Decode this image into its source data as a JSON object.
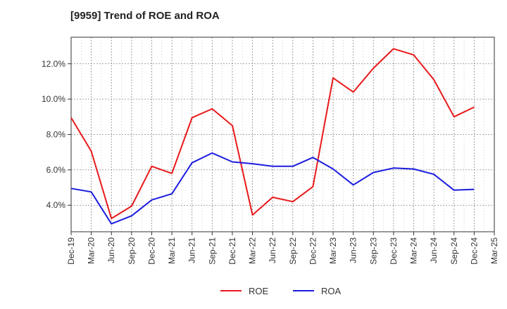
{
  "chart_data": {
    "type": "line",
    "title": "[9959]  Trend of ROE and ROA",
    "x": [
      "Dec-19",
      "Mar-20",
      "Jun-20",
      "Sep-20",
      "Dec-20",
      "Mar-21",
      "Jun-21",
      "Sep-21",
      "Dec-21",
      "Mar-22",
      "Jun-22",
      "Sep-22",
      "Dec-22",
      "Mar-23",
      "Jun-23",
      "Sep-23",
      "Dec-23",
      "Mar-24",
      "Jun-24",
      "Sep-24",
      "Dec-24",
      "Mar-25"
    ],
    "y_ticks": [
      "4.0%",
      "6.0%",
      "8.0%",
      "10.0%",
      "12.0%"
    ],
    "y_tick_values": [
      4,
      6,
      8,
      10,
      12
    ],
    "ylim": [
      2.5,
      13.5
    ],
    "grid": true,
    "legend_position": "bottom-center",
    "series": [
      {
        "name": "ROE",
        "color": "#e8191b",
        "values": [
          8.95,
          7.05,
          3.25,
          3.95,
          6.2,
          5.8,
          8.95,
          9.45,
          8.5,
          3.45,
          4.45,
          4.2,
          5.05,
          11.2,
          10.4,
          11.75,
          12.85,
          12.5,
          11.1,
          9.0,
          9.55,
          null
        ]
      },
      {
        "name": "ROA",
        "color": "#1c1ce0",
        "values": [
          4.95,
          4.75,
          2.95,
          3.4,
          4.3,
          4.65,
          6.4,
          6.95,
          6.45,
          6.35,
          6.2,
          6.2,
          6.7,
          6.05,
          5.15,
          5.85,
          6.1,
          6.05,
          5.75,
          4.85,
          4.9,
          null
        ]
      }
    ]
  }
}
